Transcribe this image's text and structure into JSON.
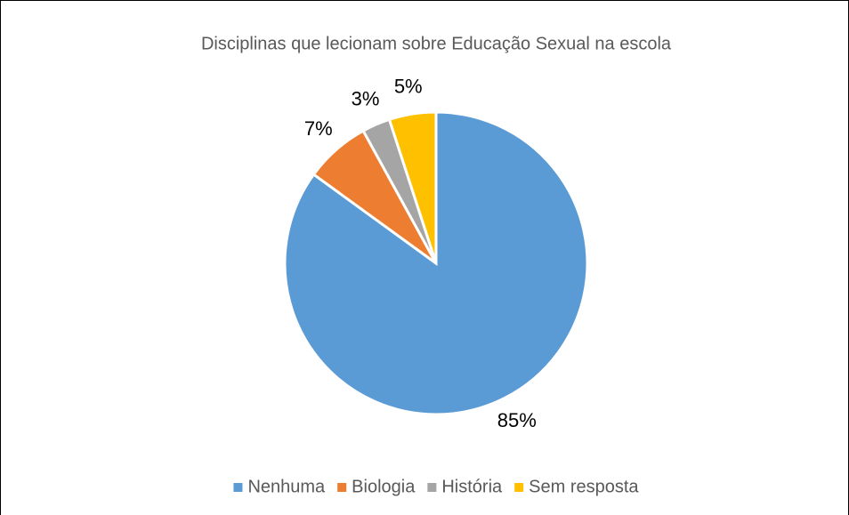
{
  "chart_data": {
    "type": "pie",
    "title": "Disciplinas que lecionam sobre Educação Sexual na escola",
    "categories": [
      "Nenhuma",
      "Biologia",
      "História",
      "Sem resposta"
    ],
    "values": [
      85,
      7,
      3,
      5
    ],
    "value_labels": [
      "85%",
      "7%",
      "3%",
      "5%"
    ],
    "colors": [
      "#5b9bd5",
      "#ed7d31",
      "#a5a5a5",
      "#ffc000"
    ],
    "legend": "bottom"
  }
}
